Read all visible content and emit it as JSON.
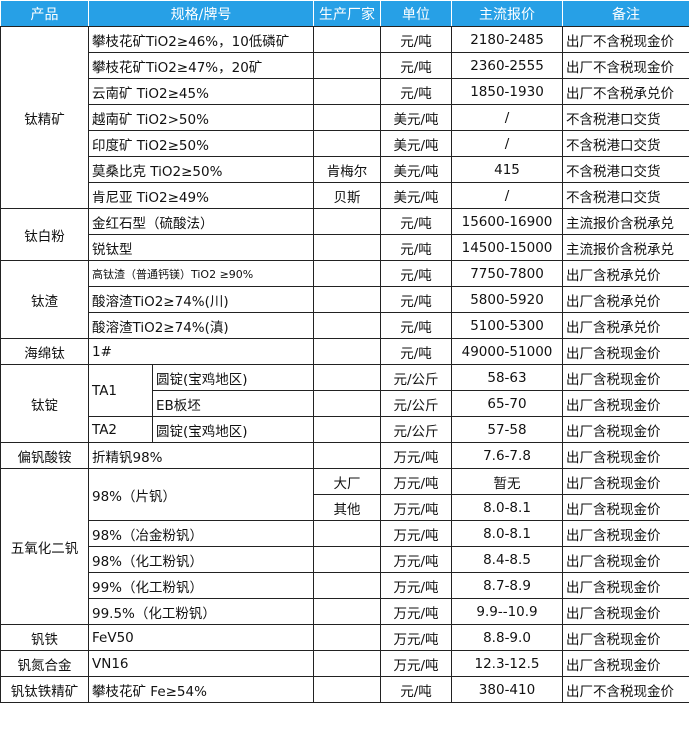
{
  "header": [
    "产品",
    "规格/牌号",
    "生产厂家",
    "单位",
    "主流报价",
    "备注"
  ],
  "colors": {
    "header_bg": "#27a0e6",
    "header_text": "#ffffff"
  },
  "groups": [
    {
      "product": "钛精矿",
      "items": [
        {
          "spec": "攀枝花矿TiO2≥46%，10低磷矿",
          "maker": "",
          "unit": "元/吨",
          "price": "2180-2485",
          "note": "出厂不含税现金价"
        },
        {
          "spec": "攀枝花矿TiO2≥47%，20矿",
          "maker": "",
          "unit": "元/吨",
          "price": "2360-2555",
          "note": "出厂不含税现金价"
        },
        {
          "spec": "云南矿 TiO2≥45%",
          "maker": "",
          "unit": "元/吨",
          "price": "1850-1930",
          "note": "出厂不含税承兑价"
        },
        {
          "spec": "越南矿 TiO2>50%",
          "maker": "",
          "unit": "美元/吨",
          "price": "/",
          "note": "不含税港口交货"
        },
        {
          "spec": "印度矿 TiO2≥50%",
          "maker": "",
          "unit": "美元/吨",
          "price": "/",
          "note": "不含税港口交货"
        },
        {
          "spec": "莫桑比克 TiO2≥50%",
          "maker": "肯梅尔",
          "unit": "美元/吨",
          "price": "415",
          "note": "不含税港口交货"
        },
        {
          "spec": "肯尼亚 TiO2≥49%",
          "maker": "贝斯",
          "unit": "美元/吨",
          "price": "/",
          "note": "不含税港口交货"
        }
      ]
    },
    {
      "product": "钛白粉",
      "items": [
        {
          "spec": "金红石型（硫酸法）",
          "maker": "",
          "unit": "元/吨",
          "price": "15600-16900",
          "note": "主流报价含税承兑"
        },
        {
          "spec": "锐钛型",
          "maker": "",
          "unit": "元/吨",
          "price": "14500-15000",
          "note": "主流报价含税承兑"
        }
      ]
    },
    {
      "product": "钛渣",
      "items": [
        {
          "spec": "高钛渣（普通钙镁）TiO2 ≥90%",
          "maker": "",
          "unit": "元/吨",
          "price": "7750-7800",
          "note": "出厂含税承兑价"
        },
        {
          "spec": "酸溶渣TiO2≥74%(川)",
          "maker": "",
          "unit": "元/吨",
          "price": "5800-5920",
          "note": "出厂含税承兑价"
        },
        {
          "spec": "酸溶渣TiO2≥74%(滇)",
          "maker": "",
          "unit": "元/吨",
          "price": "5100-5300",
          "note": "出厂含税承兑价"
        }
      ]
    },
    {
      "product": "海绵钛",
      "items": [
        {
          "spec": "1#",
          "maker": "",
          "unit": "元/吨",
          "price": "49000-51000",
          "note": "出厂含税现金价"
        }
      ]
    },
    {
      "product": "钛锭",
      "items": [
        {
          "spec": "TA1",
          "sub": "圆锭(宝鸡地区)",
          "maker": "",
          "unit": "元/公斤",
          "price": "58-63",
          "note": "出厂含税现金价"
        },
        {
          "spec": null,
          "sub": "EB板坯",
          "maker": "",
          "unit": "元/公斤",
          "price": "65-70",
          "note": "出厂含税现金价"
        },
        {
          "spec": "TA2",
          "sub": "圆锭(宝鸡地区)",
          "maker": "",
          "unit": "元/公斤",
          "price": "57-58",
          "note": "出厂含税现金价"
        }
      ]
    },
    {
      "product": "偏钒酸铵",
      "items": [
        {
          "spec": "折精钒98%",
          "maker": "",
          "unit": "万元/吨",
          "price": "7.6-7.8",
          "note": "出厂含税现金价"
        }
      ]
    },
    {
      "product": "五氧化二钒",
      "items": [
        {
          "spec": "98%（片钒）",
          "maker": "大厂",
          "unit": "万元/吨",
          "price": "暂无",
          "note": "出厂含税现金价"
        },
        {
          "spec": null,
          "maker": "其他",
          "unit": "万元/吨",
          "price": "8.0-8.1",
          "note": "出厂含税现金价"
        },
        {
          "spec": "98%（冶金粉钒）",
          "maker": "",
          "unit": "万元/吨",
          "price": "8.0-8.1",
          "note": "出厂含税现金价"
        },
        {
          "spec": "98%（化工粉钒）",
          "maker": "",
          "unit": "万元/吨",
          "price": "8.4-8.5",
          "note": "出厂含税现金价"
        },
        {
          "spec": "99%（化工粉钒）",
          "maker": "",
          "unit": "万元/吨",
          "price": "8.7-8.9",
          "note": "出厂含税现金价"
        },
        {
          "spec": "99.5%（化工粉钒）",
          "maker": "",
          "unit": "万元/吨",
          "price": "9.9--10.9",
          "note": "出厂含税现金价"
        }
      ]
    },
    {
      "product": "钒铁",
      "items": [
        {
          "spec": "FeV50",
          "maker": "",
          "unit": "万元/吨",
          "price": "8.8-9.0",
          "note": "出厂含税现金价"
        }
      ]
    },
    {
      "product": "钒氮合金",
      "items": [
        {
          "spec": "VN16",
          "maker": "",
          "unit": "万元/吨",
          "price": "12.3-12.5",
          "note": "出厂含税现金价"
        }
      ]
    },
    {
      "product": "钒钛铁精矿",
      "items": [
        {
          "spec": "攀枝花矿 Fe≥54%",
          "maker": "",
          "unit": "元/吨",
          "price": "380-410",
          "note": "出厂不含税现金价"
        }
      ]
    }
  ]
}
